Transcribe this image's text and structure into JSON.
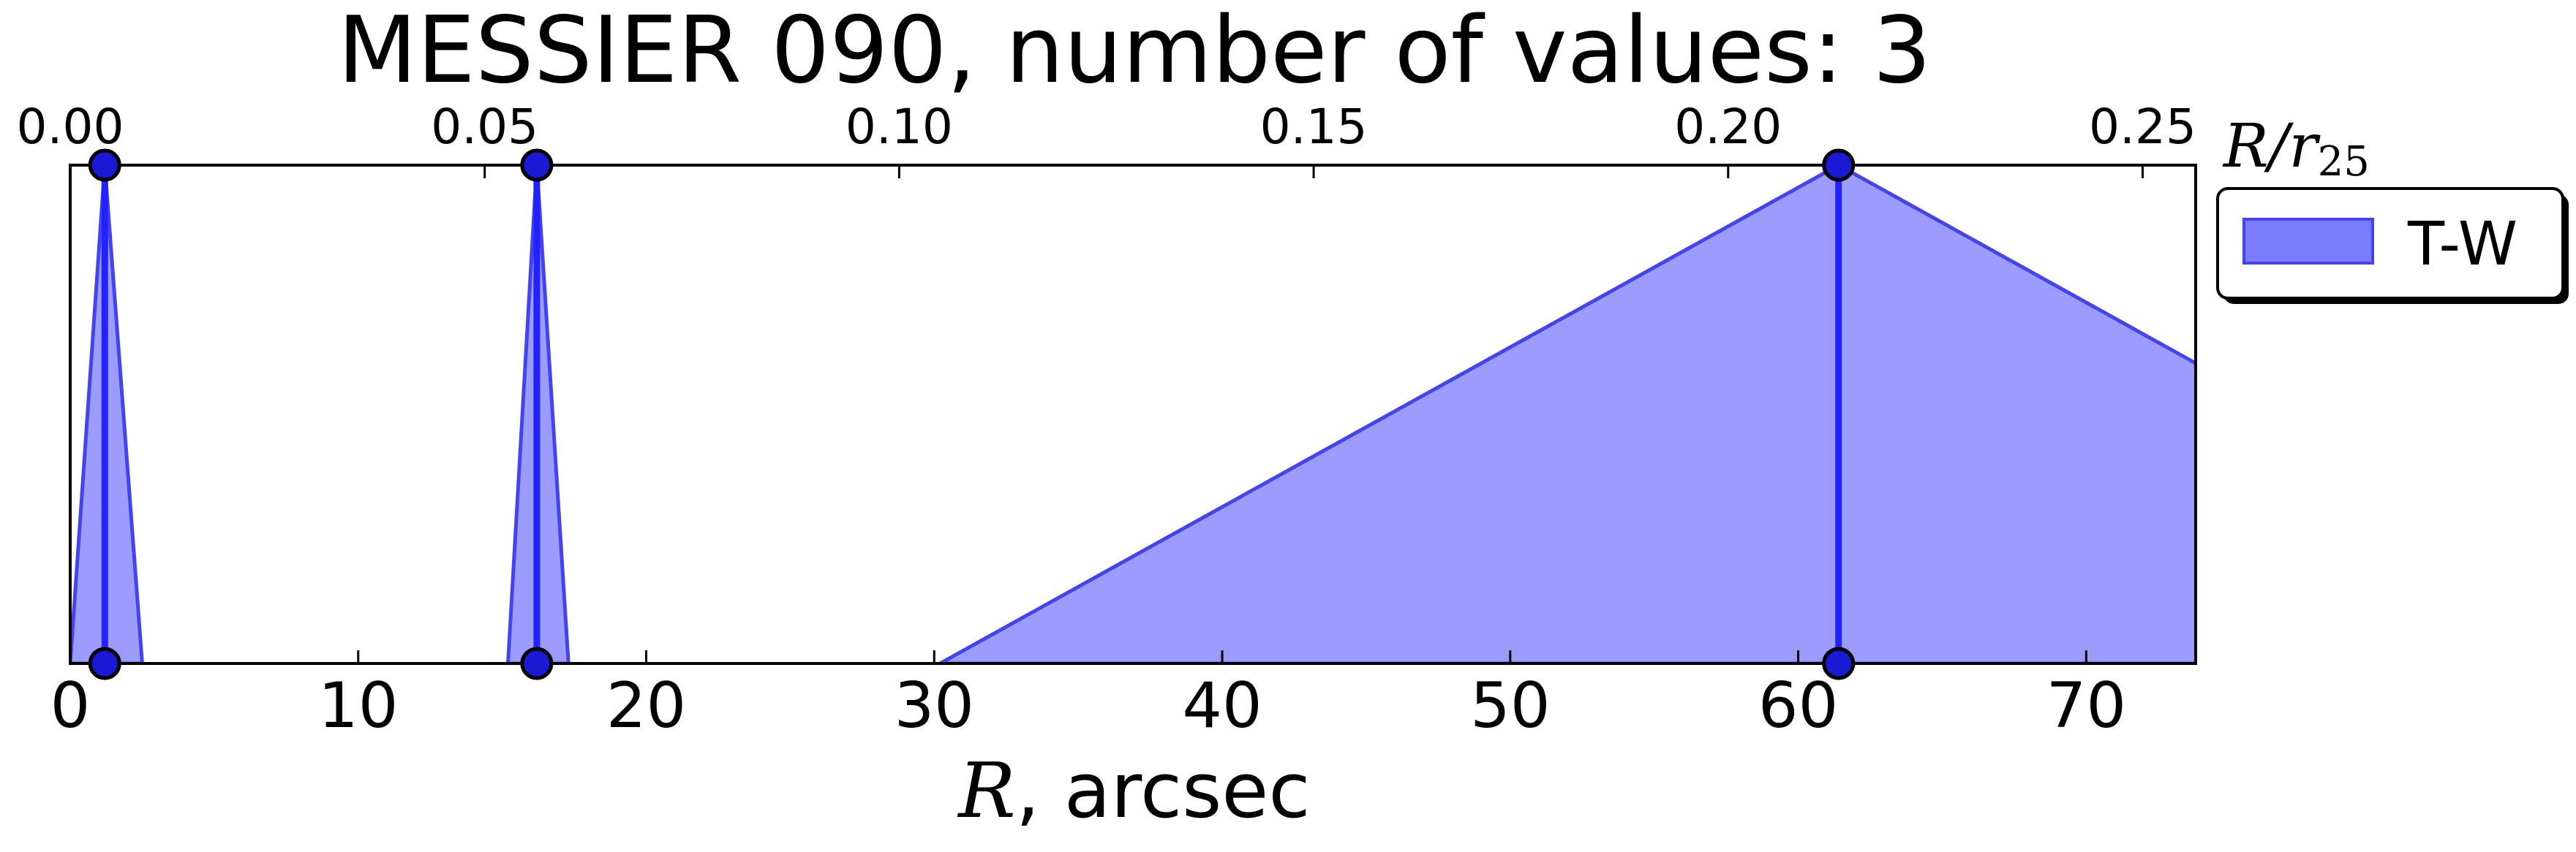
{
  "chart_data": {
    "type": "area",
    "title": "MESSIER 090, number of values: 3",
    "xlabel": {
      "math": "R",
      "text": ", arcsec"
    },
    "x2label": {
      "math": "R/r",
      "sub": "25"
    },
    "xlim": [
      0,
      73.8
    ],
    "x2lim": [
      0,
      0.2564
    ],
    "xticks": [
      "0",
      "10",
      "20",
      "30",
      "40",
      "50",
      "60",
      "70"
    ],
    "x2ticks": [
      "0.00",
      "0.05",
      "0.10",
      "0.15",
      "0.20",
      "0.25"
    ],
    "ylim": [
      0,
      1
    ],
    "legend": {
      "position": "right",
      "entries": [
        "T-W"
      ]
    },
    "colors": {
      "fill": "#7b7bff",
      "edge": "#4444ee",
      "line": "#2222ff",
      "marker_fill": "#1a1ad4"
    },
    "series": [
      {
        "name": "T-W",
        "points": [
          {
            "r": 1.2,
            "left": 0.0,
            "right": 2.5
          },
          {
            "r": 16.2,
            "left": 15.2,
            "right": 17.3
          },
          {
            "r": 61.4,
            "left": 30.2,
            "right": 92.6
          }
        ]
      }
    ]
  }
}
